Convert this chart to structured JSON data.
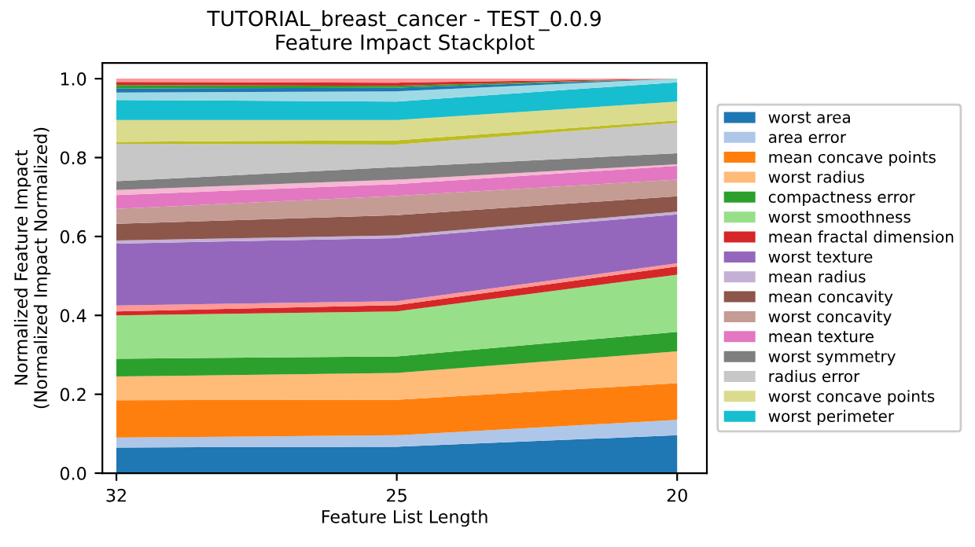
{
  "chart_data": {
    "type": "area",
    "stacked": true,
    "title": "TUTORIAL_breast_cancer - TEST_0.0.9\nFeature Impact Stackplot",
    "xlabel": "Feature List Length",
    "ylabel": "Normalized Feature Impact\n(Normalized Impact Normalized)",
    "categories": [
      "32",
      "25",
      "20"
    ],
    "ylim": [
      0,
      1.04
    ],
    "yticks": [
      {
        "value": 0,
        "label": "0.0"
      },
      {
        "value": 0.2,
        "label": "0.2"
      },
      {
        "value": 0.4,
        "label": "0.4"
      },
      {
        "value": 0.6,
        "label": "0.6"
      },
      {
        "value": 0.8,
        "label": "0.8"
      },
      {
        "value": 1,
        "label": "1.0"
      }
    ],
    "grid": false,
    "legend": "right",
    "series": [
      {
        "name": "worst area",
        "color": "#1f77b4",
        "values": [
          0.065,
          0.067,
          0.096
        ]
      },
      {
        "name": "area error",
        "color": "#aec7e8",
        "values": [
          0.025,
          0.029,
          0.039
        ]
      },
      {
        "name": "mean concave points",
        "color": "#ff7f0e",
        "values": [
          0.095,
          0.09,
          0.093
        ]
      },
      {
        "name": "worst radius",
        "color": "#ffbb78",
        "values": [
          0.06,
          0.068,
          0.081
        ]
      },
      {
        "name": "compactness error",
        "color": "#2ca02c",
        "values": [
          0.045,
          0.042,
          0.049
        ]
      },
      {
        "name": "worst smoothness",
        "color": "#98df8a",
        "values": [
          0.11,
          0.114,
          0.145
        ]
      },
      {
        "name": "mean fractal dimension",
        "color": "#d62728",
        "values": [
          0.01,
          0.016,
          0.021
        ]
      },
      {
        "color": "#ff9896",
        "values": [
          0.015,
          0.01,
          0.008
        ]
      },
      {
        "name": "worst texture",
        "color": "#9467bd",
        "values": [
          0.157,
          0.16,
          0.124
        ]
      },
      {
        "name": "mean radius",
        "color": "#c5b0d5",
        "values": [
          0.008,
          0.007,
          0.007
        ]
      },
      {
        "name": "mean concavity",
        "color": "#8c564b",
        "values": [
          0.042,
          0.051,
          0.039
        ]
      },
      {
        "name": "worst concavity",
        "color": "#c49c94",
        "values": [
          0.038,
          0.049,
          0.042
        ]
      },
      {
        "name": "mean texture",
        "color": "#e377c2",
        "values": [
          0.035,
          0.03,
          0.035
        ]
      },
      {
        "color": "#f7b6d2",
        "values": [
          0.013,
          0.011,
          0.004
        ]
      },
      {
        "name": "worst symmetry",
        "color": "#7f7f7f",
        "values": [
          0.022,
          0.032,
          0.028
        ]
      },
      {
        "name": "radius error",
        "color": "#c7c7c7",
        "values": [
          0.095,
          0.057,
          0.077
        ]
      },
      {
        "color": "#bcbd22",
        "values": [
          0.005,
          0.011,
          0.006
        ]
      },
      {
        "name": "worst concave points",
        "color": "#dbdb8d",
        "values": [
          0.055,
          0.051,
          0.048
        ]
      },
      {
        "name": "worst perimeter",
        "color": "#17becf",
        "values": [
          0.051,
          0.047,
          0.049
        ]
      },
      {
        "color": "#9edae5",
        "values": [
          0.019,
          0.026,
          0.009
        ]
      },
      {
        "color": "#1f77b4",
        "values": [
          0.01,
          0.009,
          0
        ]
      },
      {
        "color": "#2ca02c",
        "values": [
          0.009,
          0.005,
          0
        ]
      },
      {
        "color": "#d62728",
        "values": [
          0.008,
          0.008,
          0
        ]
      },
      {
        "color": "#ff9896",
        "values": [
          0.008,
          0.01,
          0
        ]
      }
    ]
  }
}
